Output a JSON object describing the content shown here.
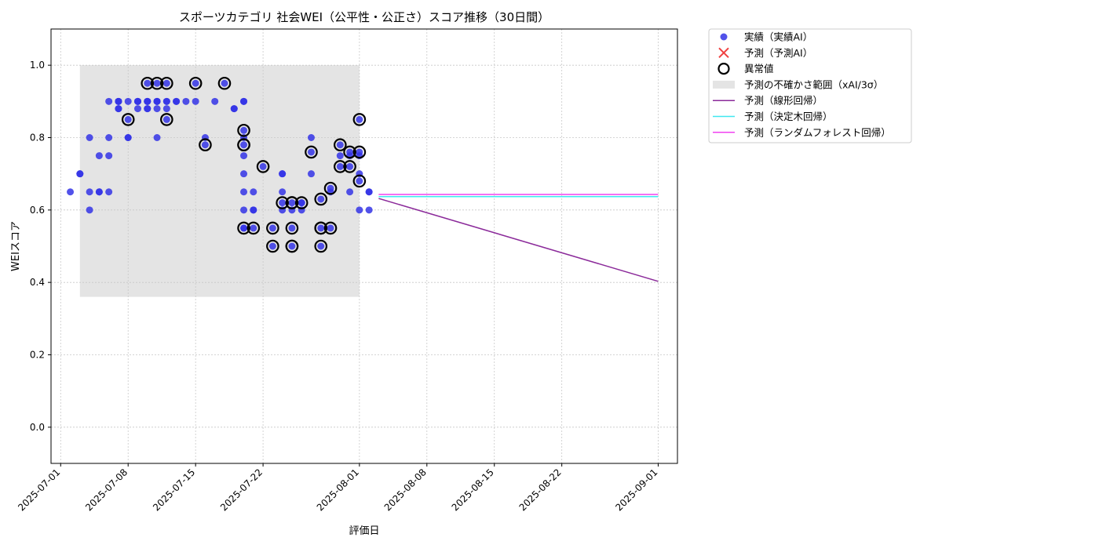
{
  "chart_data": {
    "type": "scatter",
    "title": "スポーツカテゴリ 社会WEI（公平性・公正さ）スコア推移（30日間）",
    "xlabel": "評価日",
    "ylabel": "WEIスコア",
    "xlim": [
      "2025-06-30",
      "2025-09-03"
    ],
    "ylim": [
      -0.1,
      1.1
    ],
    "grid": true,
    "legend_position": "outside-right",
    "x_ticks": [
      "2025-07-01",
      "2025-07-08",
      "2025-07-15",
      "2025-07-22",
      "2025-08-01",
      "2025-08-08",
      "2025-08-15",
      "2025-08-22",
      "2025-09-01"
    ],
    "y_ticks": [
      0.0,
      0.2,
      0.4,
      0.6,
      0.8,
      1.0
    ],
    "legend": [
      {
        "label": "実績（実績AI）",
        "kind": "dot",
        "color": "#3434e6"
      },
      {
        "label": "予測（予測AI）",
        "kind": "cross",
        "color": "#f04040"
      },
      {
        "label": "異常値",
        "kind": "ring",
        "color": "#000000"
      },
      {
        "label": "予測の不確かさ範囲（xAI/3σ）",
        "kind": "band",
        "color": "#d3d3d3"
      },
      {
        "label": "予測（線形回帰）",
        "kind": "line",
        "color": "#8b2a9a"
      },
      {
        "label": "予測（決定木回帰）",
        "kind": "line",
        "color": "#40e8f0"
      },
      {
        "label": "予測（ランダムフォレスト回帰）",
        "kind": "line",
        "color": "#f040f0"
      }
    ],
    "uncertainty_band": {
      "x_start": "2025-07-03",
      "x_end": "2025-08-01",
      "y_low": 0.36,
      "y_high": 1.0,
      "color": "#d3d3d3"
    },
    "series": [
      {
        "name": "実績（実績AI）",
        "color": "#3434e6",
        "points": [
          [
            "2025-07-02",
            0.65
          ],
          [
            "2025-07-03",
            0.7
          ],
          [
            "2025-07-03",
            0.7
          ],
          [
            "2025-07-04",
            0.6
          ],
          [
            "2025-07-04",
            0.8
          ],
          [
            "2025-07-04",
            0.65
          ],
          [
            "2025-07-05",
            0.65
          ],
          [
            "2025-07-05",
            0.65
          ],
          [
            "2025-07-05",
            0.75
          ],
          [
            "2025-07-06",
            0.75
          ],
          [
            "2025-07-06",
            0.8
          ],
          [
            "2025-07-06",
            0.65
          ],
          [
            "2025-07-06",
            0.9
          ],
          [
            "2025-07-07",
            0.88
          ],
          [
            "2025-07-07",
            0.9
          ],
          [
            "2025-07-07",
            0.9
          ],
          [
            "2025-07-07",
            0.88
          ],
          [
            "2025-07-07",
            0.9
          ],
          [
            "2025-07-08",
            0.8
          ],
          [
            "2025-07-08",
            0.8
          ],
          [
            "2025-07-08",
            0.85
          ],
          [
            "2025-07-08",
            0.9
          ],
          [
            "2025-07-09",
            0.88
          ],
          [
            "2025-07-09",
            0.9
          ],
          [
            "2025-07-09",
            0.9
          ],
          [
            "2025-07-09",
            0.9
          ],
          [
            "2025-07-10",
            0.9
          ],
          [
            "2025-07-10",
            0.9
          ],
          [
            "2025-07-10",
            0.95
          ],
          [
            "2025-07-10",
            0.9
          ],
          [
            "2025-07-10",
            0.88
          ],
          [
            "2025-07-10",
            0.88
          ],
          [
            "2025-07-11",
            0.9
          ],
          [
            "2025-07-11",
            0.95
          ],
          [
            "2025-07-11",
            0.9
          ],
          [
            "2025-07-11",
            0.8
          ],
          [
            "2025-07-11",
            0.9
          ],
          [
            "2025-07-11",
            0.88
          ],
          [
            "2025-07-12",
            0.95
          ],
          [
            "2025-07-12",
            0.88
          ],
          [
            "2025-07-12",
            0.85
          ],
          [
            "2025-07-12",
            0.9
          ],
          [
            "2025-07-12",
            0.9
          ],
          [
            "2025-07-13",
            0.9
          ],
          [
            "2025-07-13",
            0.9
          ],
          [
            "2025-07-14",
            0.9
          ],
          [
            "2025-07-15",
            0.95
          ],
          [
            "2025-07-15",
            0.9
          ],
          [
            "2025-07-16",
            0.78
          ],
          [
            "2025-07-16",
            0.8
          ],
          [
            "2025-07-17",
            0.9
          ],
          [
            "2025-07-18",
            0.95
          ],
          [
            "2025-07-19",
            0.88
          ],
          [
            "2025-07-19",
            0.88
          ],
          [
            "2025-07-20",
            0.9
          ],
          [
            "2025-07-20",
            0.9
          ],
          [
            "2025-07-20",
            0.82
          ],
          [
            "2025-07-20",
            0.8
          ],
          [
            "2025-07-20",
            0.78
          ],
          [
            "2025-07-20",
            0.75
          ],
          [
            "2025-07-20",
            0.7
          ],
          [
            "2025-07-20",
            0.65
          ],
          [
            "2025-07-20",
            0.6
          ],
          [
            "2025-07-20",
            0.55
          ],
          [
            "2025-07-20",
            0.55
          ],
          [
            "2025-07-21",
            0.6
          ],
          [
            "2025-07-21",
            0.55
          ],
          [
            "2025-07-21",
            0.6
          ],
          [
            "2025-07-21",
            0.65
          ],
          [
            "2025-07-22",
            0.72
          ],
          [
            "2025-07-23",
            0.55
          ],
          [
            "2025-07-23",
            0.5
          ],
          [
            "2025-07-24",
            0.65
          ],
          [
            "2025-07-24",
            0.6
          ],
          [
            "2025-07-24",
            0.62
          ],
          [
            "2025-07-24",
            0.7
          ],
          [
            "2025-07-24",
            0.7
          ],
          [
            "2025-07-25",
            0.55
          ],
          [
            "2025-07-25",
            0.62
          ],
          [
            "2025-07-25",
            0.5
          ],
          [
            "2025-07-25",
            0.6
          ],
          [
            "2025-07-26",
            0.62
          ],
          [
            "2025-07-26",
            0.6
          ],
          [
            "2025-07-26",
            0.62
          ],
          [
            "2025-07-27",
            0.7
          ],
          [
            "2025-07-27",
            0.8
          ],
          [
            "2025-07-27",
            0.76
          ],
          [
            "2025-07-28",
            0.63
          ],
          [
            "2025-07-28",
            0.55
          ],
          [
            "2025-07-28",
            0.5
          ],
          [
            "2025-07-29",
            0.65
          ],
          [
            "2025-07-29",
            0.55
          ],
          [
            "2025-07-29",
            0.66
          ],
          [
            "2025-07-30",
            0.78
          ],
          [
            "2025-07-30",
            0.75
          ],
          [
            "2025-07-30",
            0.72
          ],
          [
            "2025-07-31",
            0.72
          ],
          [
            "2025-07-31",
            0.65
          ],
          [
            "2025-07-31",
            0.76
          ],
          [
            "2025-07-31",
            0.75
          ],
          [
            "2025-08-01",
            0.85
          ],
          [
            "2025-08-01",
            0.76
          ],
          [
            "2025-08-01",
            0.75
          ],
          [
            "2025-08-01",
            0.7
          ],
          [
            "2025-08-01",
            0.68
          ],
          [
            "2025-08-01",
            0.6
          ],
          [
            "2025-08-02",
            0.65
          ],
          [
            "2025-08-02",
            0.6
          ],
          [
            "2025-08-02",
            0.65
          ]
        ]
      },
      {
        "name": "異常値",
        "color": "#000000",
        "points": [
          [
            "2025-07-08",
            0.85
          ],
          [
            "2025-07-10",
            0.95
          ],
          [
            "2025-07-11",
            0.95
          ],
          [
            "2025-07-12",
            0.95
          ],
          [
            "2025-07-12",
            0.85
          ],
          [
            "2025-07-15",
            0.95
          ],
          [
            "2025-07-16",
            0.78
          ],
          [
            "2025-07-18",
            0.95
          ],
          [
            "2025-07-20",
            0.82
          ],
          [
            "2025-07-20",
            0.78
          ],
          [
            "2025-07-20",
            0.78
          ],
          [
            "2025-07-20",
            0.55
          ],
          [
            "2025-07-21",
            0.55
          ],
          [
            "2025-07-22",
            0.72
          ],
          [
            "2025-07-23",
            0.55
          ],
          [
            "2025-07-23",
            0.5
          ],
          [
            "2025-07-24",
            0.62
          ],
          [
            "2025-07-25",
            0.62
          ],
          [
            "2025-07-25",
            0.55
          ],
          [
            "2025-07-25",
            0.62
          ],
          [
            "2025-07-25",
            0.5
          ],
          [
            "2025-07-25",
            0.5
          ],
          [
            "2025-07-26",
            0.62
          ],
          [
            "2025-07-27",
            0.76
          ],
          [
            "2025-07-28",
            0.55
          ],
          [
            "2025-07-28",
            0.55
          ],
          [
            "2025-07-28",
            0.5
          ],
          [
            "2025-07-28",
            0.63
          ],
          [
            "2025-07-29",
            0.55
          ],
          [
            "2025-07-29",
            0.66
          ],
          [
            "2025-07-30",
            0.78
          ],
          [
            "2025-07-30",
            0.72
          ],
          [
            "2025-07-31",
            0.72
          ],
          [
            "2025-07-31",
            0.76
          ],
          [
            "2025-08-01",
            0.85
          ],
          [
            "2025-08-01",
            0.76
          ],
          [
            "2025-08-01",
            0.68
          ]
        ]
      },
      {
        "name": "予測（線形回帰）",
        "color": "#8b2a9a",
        "points": [
          [
            "2025-08-03",
            0.632
          ],
          [
            "2025-09-01",
            0.403
          ]
        ]
      },
      {
        "name": "予測（決定木回帰）",
        "color": "#40e8f0",
        "points": [
          [
            "2025-08-03",
            0.637
          ],
          [
            "2025-09-01",
            0.637
          ]
        ]
      },
      {
        "name": "予測（ランダムフォレスト回帰）",
        "color": "#f040f0",
        "points": [
          [
            "2025-08-03",
            0.643
          ],
          [
            "2025-09-01",
            0.643
          ]
        ]
      }
    ]
  }
}
